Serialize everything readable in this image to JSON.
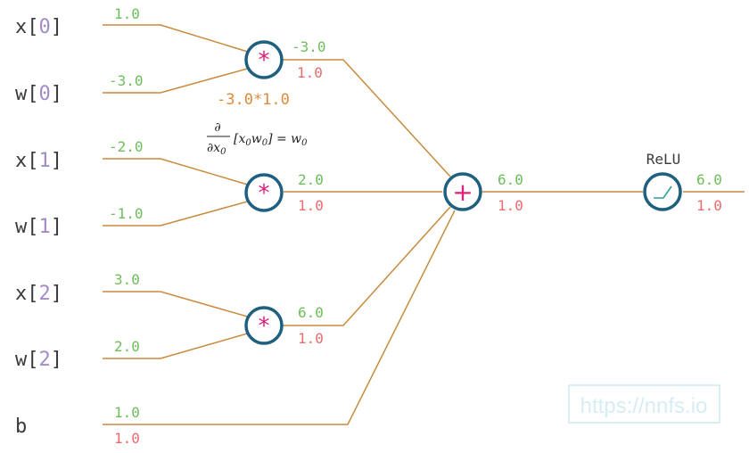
{
  "inputs": [
    {
      "name": "x",
      "index": "0"
    },
    {
      "name": "w",
      "index": "0"
    },
    {
      "name": "x",
      "index": "1"
    },
    {
      "name": "w",
      "index": "1"
    },
    {
      "name": "x",
      "index": "2"
    },
    {
      "name": "w",
      "index": "2"
    },
    {
      "name": "b",
      "index": ""
    }
  ],
  "input_values": [
    "1.0",
    "-3.0",
    "-2.0",
    "-1.0",
    "3.0",
    "2.0",
    "1.0"
  ],
  "bias_gradient": "1.0",
  "multiply_nodes": [
    {
      "symbol": "*",
      "output": "-3.0",
      "gradient": "1.0"
    },
    {
      "symbol": "*",
      "output": "2.0",
      "gradient": "1.0"
    },
    {
      "symbol": "*",
      "output": "6.0",
      "gradient": "1.0"
    }
  ],
  "chain_rule_text": "-3.0*1.0",
  "derivative_formula": {
    "numerator": "∂",
    "denominator": "∂x",
    "denominator_sub": "0",
    "body_open": "[x",
    "body_sub1": "0",
    "body_mid": "w",
    "body_sub2": "0",
    "body_close": "] = w",
    "result_sub": "0"
  },
  "sum_node": {
    "symbol": "+",
    "output": "6.0",
    "gradient": "1.0"
  },
  "relu_node": {
    "label": "ReLU",
    "output": "6.0",
    "gradient": "1.0"
  },
  "watermark": "https://nnfs.io",
  "colors": {
    "wire": "#c98a3d",
    "node_border": "#1f5f7f",
    "operator": "#e0207a",
    "forward_value": "#6cbf5a",
    "gradient_value": "#ef6b6b",
    "chain_text": "#e08a3a",
    "input_index": "#a38bc7"
  }
}
